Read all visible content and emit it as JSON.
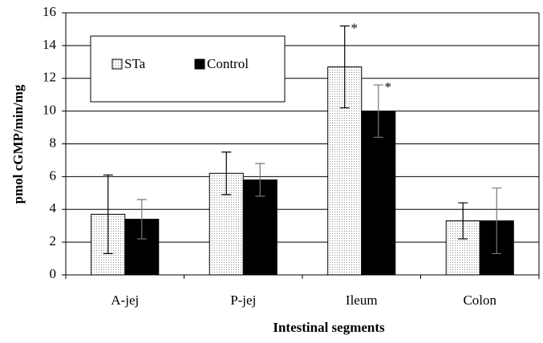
{
  "chart_data": {
    "type": "bar",
    "y_label": "pmol cGMP/min/mg",
    "x_label": "Intestinal segments",
    "categories": [
      "A-jej",
      "P-jej",
      "Ileum",
      "Colon"
    ],
    "series": [
      {
        "name": "STa",
        "color": "#e6e6e6",
        "values": [
          3.7,
          6.2,
          12.7,
          3.3
        ],
        "errors": [
          2.4,
          1.3,
          2.5,
          1.1
        ],
        "annotations": [
          null,
          null,
          "*",
          null
        ]
      },
      {
        "name": "Control",
        "color": "#000000",
        "values": [
          3.4,
          5.8,
          10.0,
          3.3
        ],
        "errors": [
          1.2,
          1.0,
          1.6,
          2.0
        ],
        "annotations": [
          null,
          null,
          "*",
          null
        ]
      }
    ],
    "ylim": [
      0,
      16
    ],
    "yticks": [
      0,
      2,
      4,
      6,
      8,
      10,
      12,
      14,
      16
    ],
    "grid": true,
    "legend": "upper left"
  }
}
